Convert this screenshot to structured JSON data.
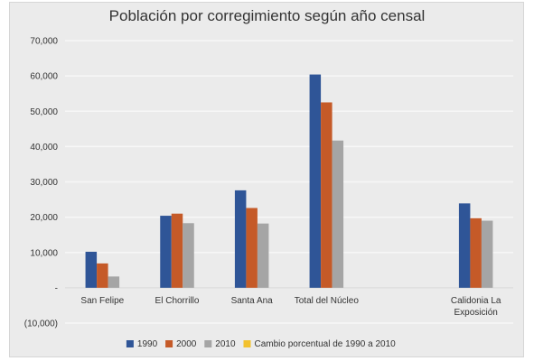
{
  "chart_data": {
    "type": "bar",
    "title": "Población por corregimiento según año censal",
    "categories": [
      [
        "San Felipe"
      ],
      [
        "El Chorrillo"
      ],
      [
        "Santa Ana"
      ],
      [
        "Total del Núcleo"
      ],
      [
        ""
      ],
      [
        "Calidonia La",
        "Exposición"
      ]
    ],
    "series": [
      {
        "name": "1990",
        "color": "#2f5597",
        "values": [
          10200,
          20400,
          27600,
          60400,
          null,
          23900
        ]
      },
      {
        "name": "2000",
        "color": "#c55a28",
        "values": [
          6900,
          21000,
          22600,
          52500,
          null,
          19700
        ]
      },
      {
        "name": "2010",
        "color": "#a5a5a5",
        "values": [
          3200,
          18300,
          18200,
          41700,
          null,
          19000
        ]
      },
      {
        "name": "Cambio porcentual de 1990 a 2010",
        "color": "#f2c12e",
        "values": [
          null,
          null,
          null,
          null,
          null,
          null
        ]
      }
    ],
    "ylim": [
      -10000,
      70000
    ],
    "yticks": [
      -10000,
      0,
      10000,
      20000,
      30000,
      40000,
      50000,
      60000,
      70000
    ],
    "ytick_labels": [
      "(10,000)",
      "-",
      "10,000",
      "20,000",
      "30,000",
      "40,000",
      "50,000",
      "60,000",
      "70,000"
    ],
    "grid": true,
    "legend_position": "bottom"
  }
}
